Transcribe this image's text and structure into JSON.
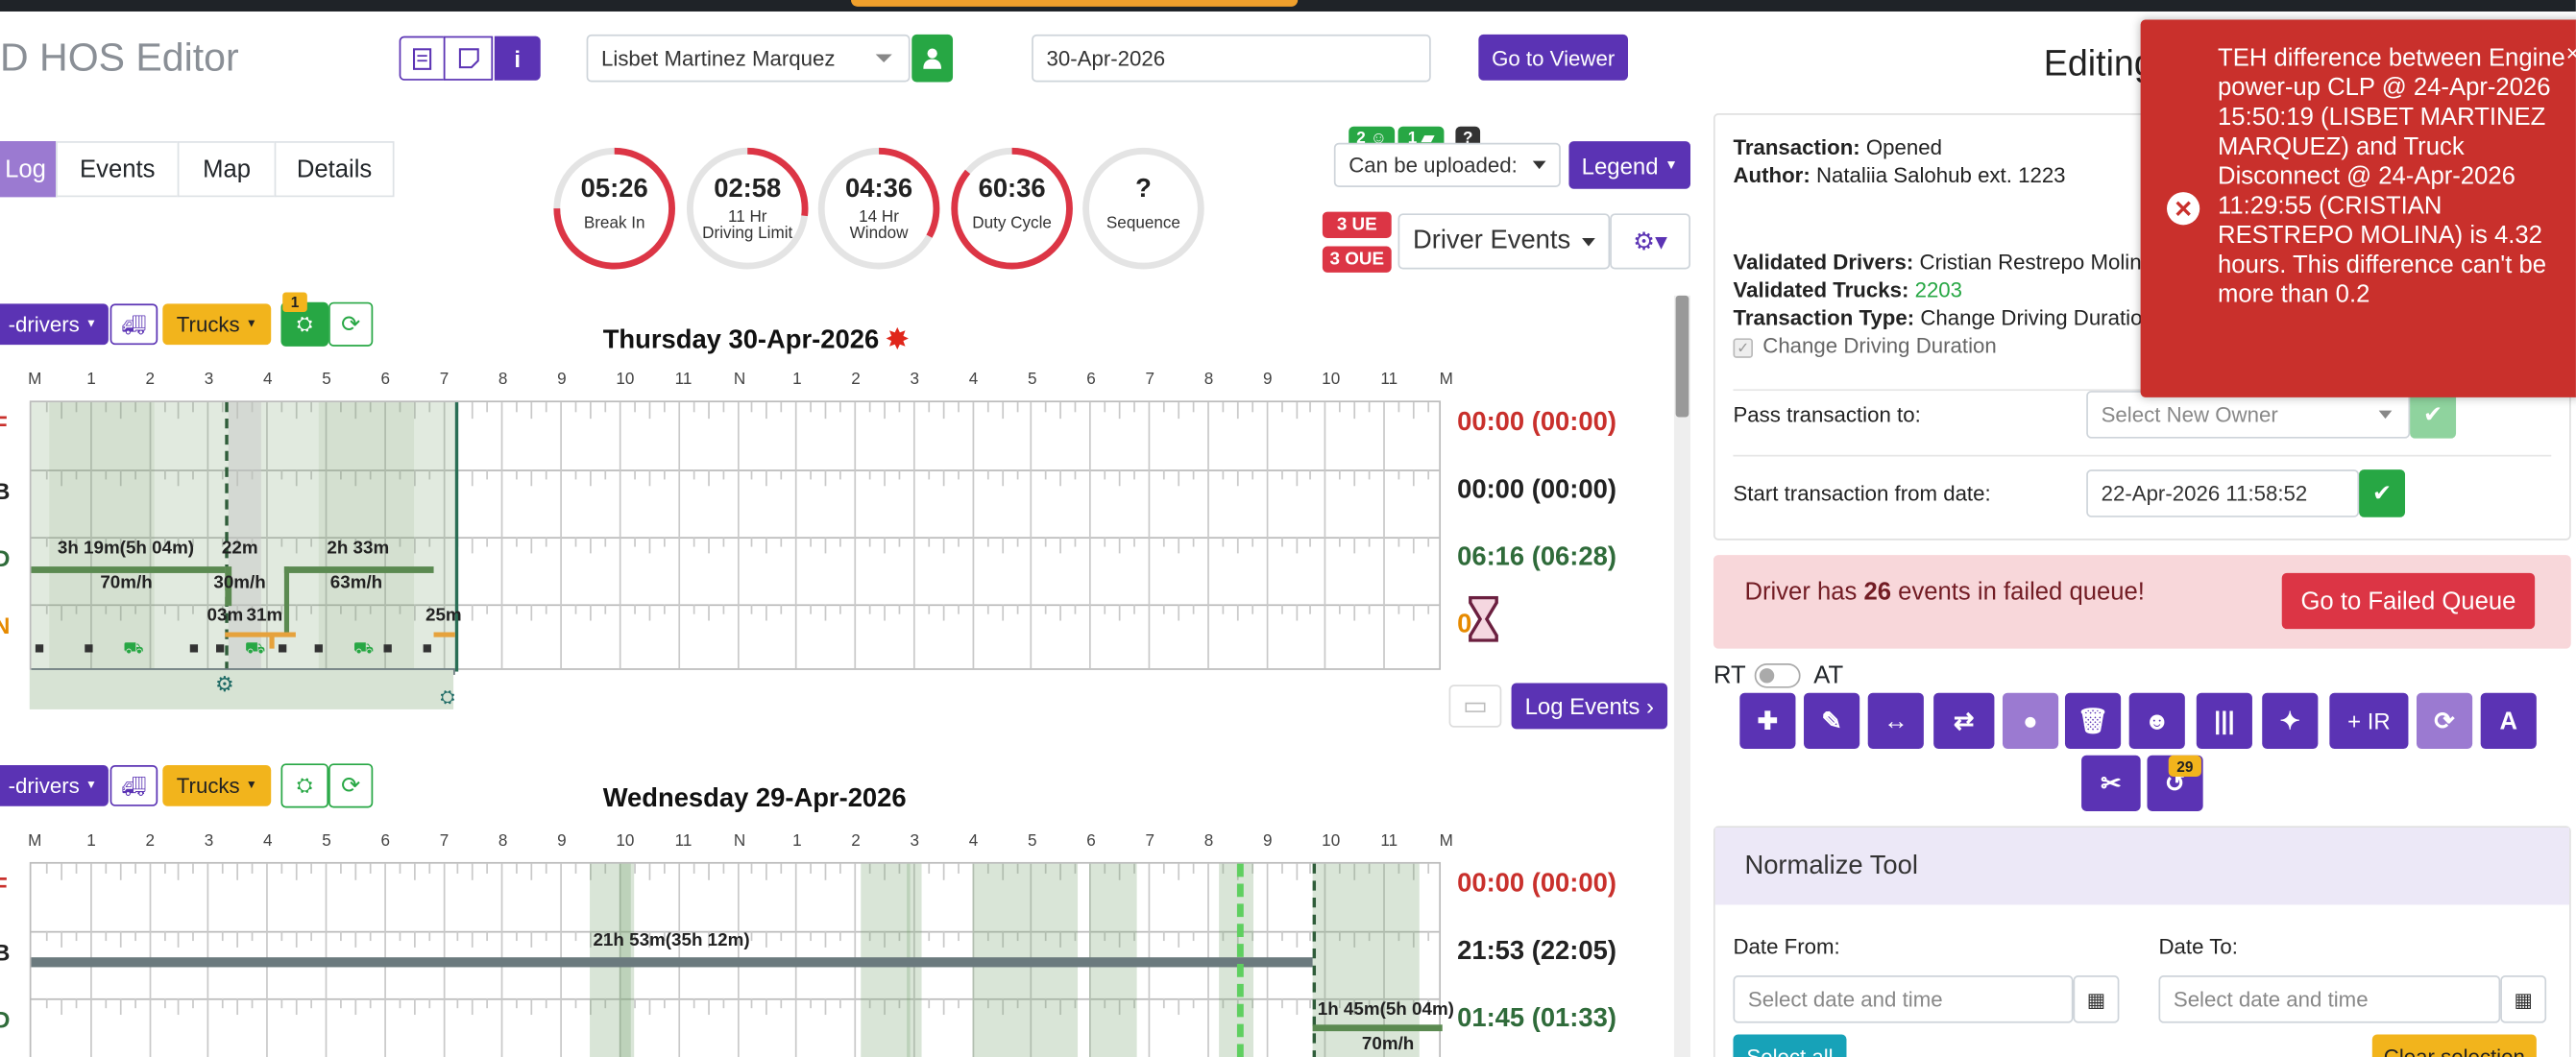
{
  "app": {
    "title": "D HOS Editor",
    "editing_title": "Editing"
  },
  "header": {
    "driver_select": "Lisbet Martinez Marquez",
    "date_value": "30-Apr-2026",
    "go_viewer": "Go to Viewer"
  },
  "tabs": [
    "Log",
    "Events",
    "Map",
    "Details"
  ],
  "gauges": [
    {
      "value": "05:26",
      "label1": "Break In",
      "label2": "",
      "level": 0.75,
      "color": "#dc3545"
    },
    {
      "value": "02:58",
      "label1": "11 Hr",
      "label2": "Driving Limit",
      "level": 0.27,
      "color": "#dc3545"
    },
    {
      "value": "04:36",
      "label1": "14 Hr",
      "label2": "Window",
      "level": 0.33,
      "color": "#dc3545"
    },
    {
      "value": "60:36",
      "label1": "Duty Cycle",
      "label2": "",
      "level": 0.86,
      "color": "#dc3545"
    },
    {
      "value": "?",
      "label1": "Sequence",
      "label2": "",
      "level": 0,
      "color": "#cccccc"
    }
  ],
  "upload": {
    "badge1": "2",
    "badge2": "1",
    "badge3": "?",
    "select": "Can be uploaded:",
    "legend": "Legend",
    "ue": "3 UE",
    "oue": "3 OUE",
    "driver_events": "Driver Events"
  },
  "day1": {
    "title": "Thursday 30-Apr-2026",
    "drivers_btn": "-drivers",
    "trucks_btn": "Trucks",
    "engine_badge": "1",
    "totals": [
      {
        "text": "00:00 (00:00)",
        "color": "#c9302c"
      },
      {
        "text": "00:00 (00:00)",
        "color": "#222222"
      },
      {
        "text": "06:16 (06:28)",
        "color": "#2f6b3a"
      },
      {
        "text": "0",
        "color": "#e68a00"
      }
    ],
    "row_letters": [
      "F",
      "B",
      "D",
      "N"
    ],
    "annotations": [
      "3h 19m(5h 04m)",
      "70m/h",
      "22m",
      "30m/h",
      "2h 33m",
      "63m/h",
      "03m",
      "31m",
      "25m"
    ],
    "log_events": "Log Events"
  },
  "day2": {
    "title": "Wednesday 29-Apr-2026",
    "drivers_btn": "-drivers",
    "trucks_btn": "Trucks",
    "totals": [
      {
        "text": "00:00 (00:00)",
        "color": "#c9302c"
      },
      {
        "text": "21:53 (22:05)",
        "color": "#222222"
      },
      {
        "text": "01:45 (01:33)",
        "color": "#2f6b3a"
      }
    ],
    "annotations": [
      "21h 53m(35h 12m)",
      "1h 45m(5h 04m)",
      "70m/h"
    ]
  },
  "hour_labels": [
    "M",
    "1",
    "2",
    "3",
    "4",
    "5",
    "6",
    "7",
    "8",
    "9",
    "10",
    "11",
    "N",
    "1",
    "2",
    "3",
    "4",
    "5",
    "6",
    "7",
    "8",
    "9",
    "10",
    "11",
    "M"
  ],
  "sidebar": {
    "transaction_label": "Transaction:",
    "transaction_value": "Opened",
    "author_label": "Author:",
    "author_value": "Nataliia Salohub ext. 1223",
    "vd_label": "Validated Drivers:",
    "vd_value": "Cristian Restrepo Molin",
    "vt_label": "Validated Trucks:",
    "vt_value": "2203",
    "tt_label": "Transaction Type:",
    "tt_value": "Change Driving Duratio",
    "change_driving": "Change Driving Duration",
    "pass_label": "Pass transaction to:",
    "select_owner": "Select New Owner",
    "start_label": "Start transaction from date:",
    "start_value": "22-Apr-2026 11:58:52",
    "failed_prefix": "Driver has ",
    "failed_count": "26",
    "failed_suffix": " events in failed queue!",
    "failed_btn": "Go to Failed Queue",
    "rt": "RT",
    "at": "AT",
    "ir": "+ IR",
    "history_badge": "29",
    "normalize_title": "Normalize Tool",
    "date_from": "Date From:",
    "date_to": "Date To:",
    "date_placeholder": "Select date and time",
    "select_all": "Select all",
    "clear_selection": "Clear selection"
  },
  "alert": {
    "message": "TEH difference between Engine power-up CLP @ 24-Apr-2026 15:50:19 (LISBET MARTINEZ MARQUEZ) and Truck Disconnect @ 24-Apr-2026 11:29:55 (CRISTIAN RESTREPO MOLINA) is 4.32 hours. This difference can't be more than 0.2"
  }
}
